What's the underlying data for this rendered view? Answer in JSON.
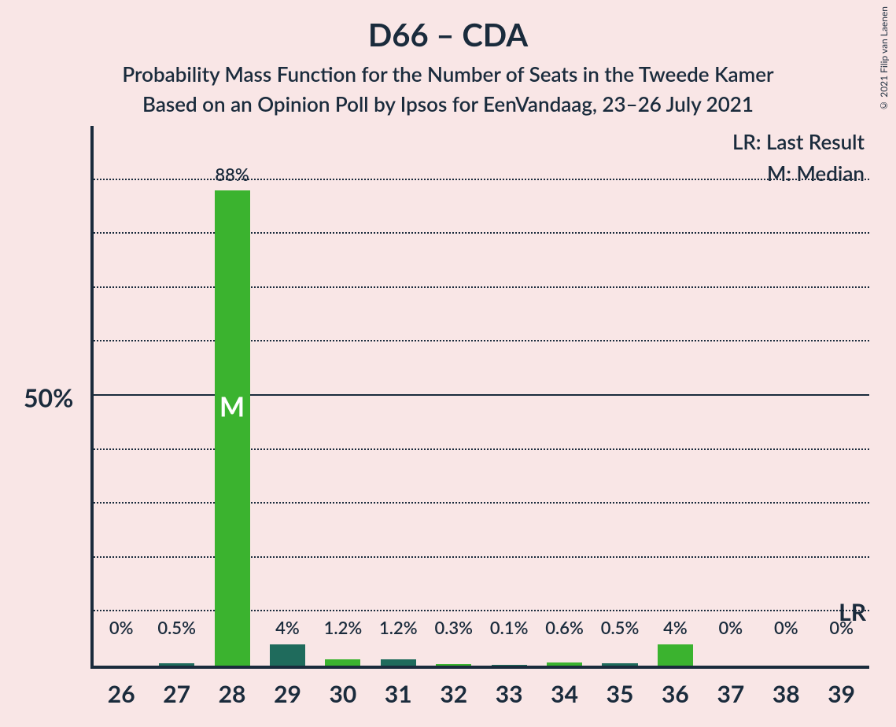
{
  "chart": {
    "type": "bar",
    "title": "D66 – CDA",
    "subtitle1": "Probability Mass Function for the Number of Seats in the Tweede Kamer",
    "subtitle2": "Based on an Opinion Poll by Ipsos for EenVandaag, 23–26 July 2021",
    "copyright": "© 2021 Filip van Laenen",
    "legend": {
      "lr": "LR: Last Result",
      "m": "M: Median"
    },
    "background_color": "#f9e6e6",
    "text_color": "#1a2b3c",
    "bar_colors": {
      "light_green": "#3bb32f",
      "dark_teal": "#1f6b5c"
    },
    "ylim": [
      0,
      100
    ],
    "ytick_major": 50,
    "ytick_minor": 10,
    "ylabel_50": "50%",
    "lr_marker": {
      "text": "LR",
      "at_category": "39"
    },
    "median_marker": {
      "text": "M",
      "at_category": "28"
    },
    "categories": [
      "26",
      "27",
      "28",
      "29",
      "30",
      "31",
      "32",
      "33",
      "34",
      "35",
      "36",
      "37",
      "38",
      "39"
    ],
    "bars": [
      {
        "cat": "26",
        "value": 0,
        "label": "0%",
        "color": "light_green"
      },
      {
        "cat": "27",
        "value": 0.5,
        "label": "0.5%",
        "color": "dark_teal"
      },
      {
        "cat": "28",
        "value": 88,
        "label": "88%",
        "color": "light_green",
        "is_median": true
      },
      {
        "cat": "29",
        "value": 4,
        "label": "4%",
        "color": "dark_teal"
      },
      {
        "cat": "30",
        "value": 1.2,
        "label": "1.2%",
        "color": "light_green"
      },
      {
        "cat": "31",
        "value": 1.2,
        "label": "1.2%",
        "color": "dark_teal"
      },
      {
        "cat": "32",
        "value": 0.3,
        "label": "0.3%",
        "color": "light_green"
      },
      {
        "cat": "33",
        "value": 0.1,
        "label": "0.1%",
        "color": "dark_teal"
      },
      {
        "cat": "34",
        "value": 0.6,
        "label": "0.6%",
        "color": "light_green"
      },
      {
        "cat": "35",
        "value": 0.5,
        "label": "0.5%",
        "color": "dark_teal"
      },
      {
        "cat": "36",
        "value": 4,
        "label": "4%",
        "color": "light_green"
      },
      {
        "cat": "37",
        "value": 0,
        "label": "0%",
        "color": "dark_teal"
      },
      {
        "cat": "38",
        "value": 0,
        "label": "0%",
        "color": "light_green"
      },
      {
        "cat": "39",
        "value": 0,
        "label": "0%",
        "color": "dark_teal"
      }
    ]
  }
}
